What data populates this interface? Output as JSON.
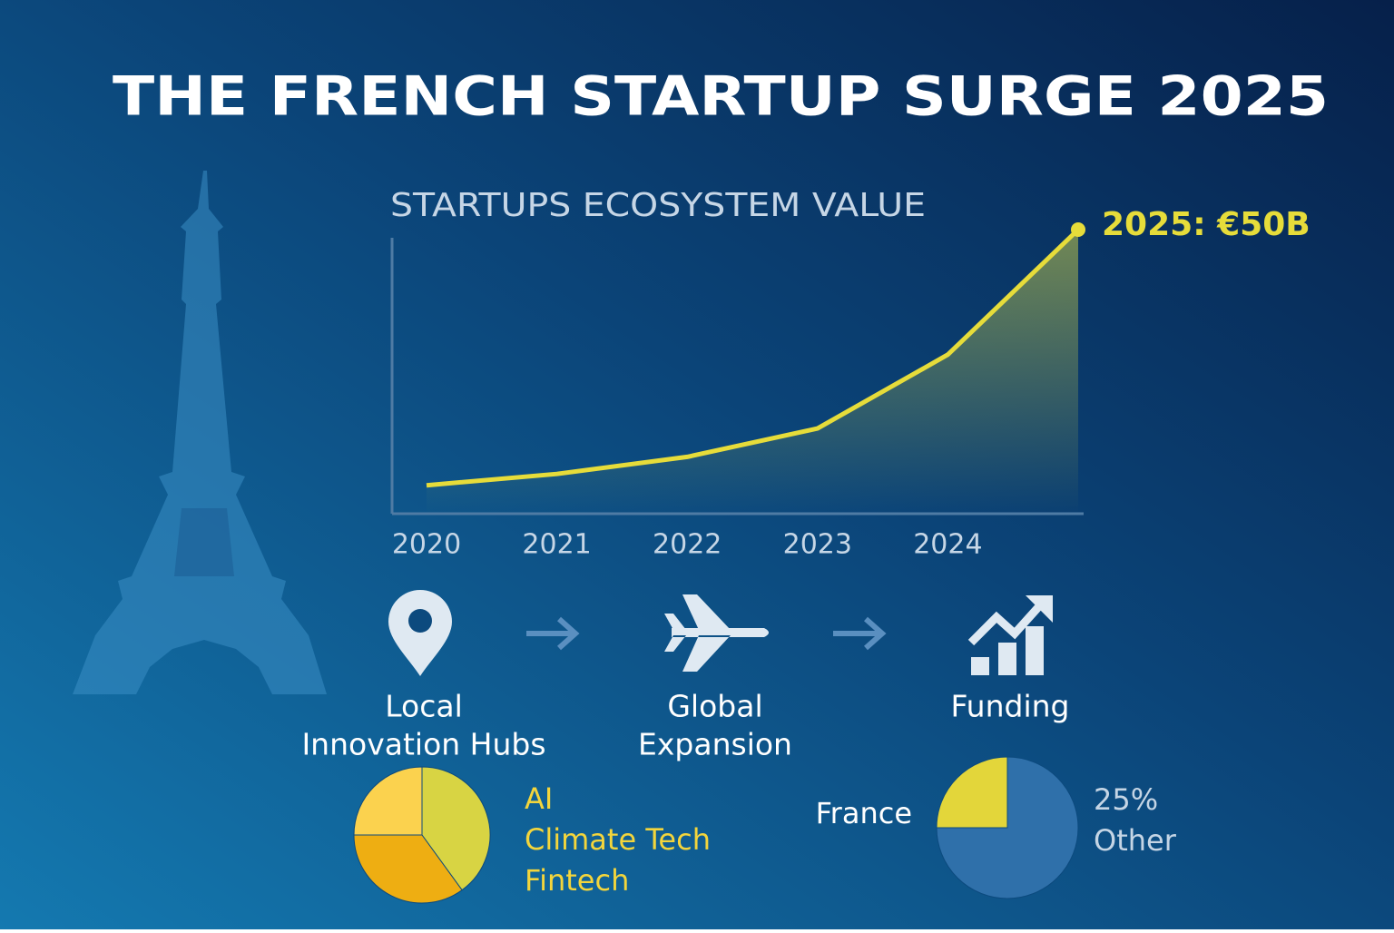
{
  "title": "THE FRENCH STARTUP SURGE 2025",
  "chart_data": [
    {
      "type": "line",
      "title": "STARTUPS ECOSYSTEM VALUE",
      "categories": [
        "2020",
        "2021",
        "2022",
        "2023",
        "2024",
        null
      ],
      "values": [
        5,
        7,
        10,
        15,
        28,
        50
      ],
      "color": "#e6dc3a",
      "annotation": "2025: €50B"
    },
    {
      "type": "pie",
      "categories": [
        "AI",
        "Climate Tech",
        "Fintech"
      ],
      "values": [
        40,
        35,
        25
      ],
      "colors": [
        "#d8d443",
        "#eeae12",
        "#fbd24e"
      ]
    },
    {
      "type": "pie",
      "categories": [
        "France",
        "Other"
      ],
      "values": [
        25,
        75
      ],
      "value_labels": [
        "25%",
        null
      ],
      "colors": [
        "#e3d63a",
        "#2f70aa"
      ]
    }
  ],
  "steps": [
    [
      "Local",
      "Innovation Hubs"
    ],
    [
      "Global",
      "Expansion"
    ],
    [
      "Funding"
    ]
  ]
}
